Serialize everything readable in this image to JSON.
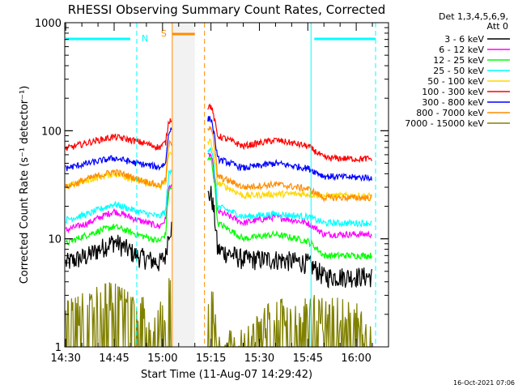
{
  "chart_data": {
    "type": "line",
    "title": "RHESSI Observing Summary Count Rates, Corrected",
    "xlabel": "Start Time (11-Aug-07 14:29:42)",
    "ylabel": "Corrected Count Rate (s⁻¹ detector⁻¹)",
    "y_scale": "log",
    "ylim": [
      1,
      1000
    ],
    "y_ticks": [
      {
        "value": 1,
        "label": "1"
      },
      {
        "value": 10,
        "label": "10"
      },
      {
        "value": 100,
        "label": "100"
      },
      {
        "value": 1000,
        "label": "1000"
      }
    ],
    "xlim": [
      "14:29:42",
      "16:10:00"
    ],
    "x_ticks": [
      "14:30",
      "14:45",
      "15:00",
      "15:15",
      "15:30",
      "15:45",
      "16:00"
    ],
    "legend_position": "top-right",
    "legend_header": [
      "Det 1,3,4,5,6,9,",
      "Att 0"
    ],
    "timestamp": "16-Oct-2021 07:06",
    "flag_markers": [
      {
        "label": "N",
        "color": "#00ffff"
      },
      {
        "label": "S",
        "color": "#ff8c00"
      }
    ],
    "series": [
      {
        "name": "3 - 6 keV",
        "color": "#000000",
        "x": [
          "14:30",
          "14:37",
          "14:45",
          "14:52",
          "14:59",
          "15:01",
          "15:02",
          "15:15",
          "15:17",
          "15:25",
          "15:35",
          "15:45",
          "15:50",
          "16:00",
          "16:05"
        ],
        "y": [
          6,
          7,
          9.5,
          7,
          6,
          7,
          12,
          26,
          8,
          6.5,
          6.5,
          6,
          4.5,
          4.5,
          4.5
        ]
      },
      {
        "name": "6 - 12 keV",
        "color": "#ff00ff",
        "x": [
          "14:30",
          "14:37",
          "14:45",
          "14:52",
          "14:59",
          "15:01",
          "15:02",
          "15:15",
          "15:17",
          "15:25",
          "15:35",
          "15:45",
          "15:50",
          "16:00",
          "16:05"
        ],
        "y": [
          12,
          14,
          18,
          15,
          13,
          15,
          30,
          60,
          18,
          14,
          16,
          14,
          11,
          11,
          11
        ]
      },
      {
        "name": "12 - 25 keV",
        "color": "#00ff00",
        "x": [
          "14:30",
          "14:37",
          "14:45",
          "14:52",
          "14:59",
          "15:01",
          "15:02",
          "15:15",
          "15:17",
          "15:25",
          "15:35",
          "15:45",
          "15:50",
          "16:00",
          "16:05"
        ],
        "y": [
          9,
          11,
          13,
          11,
          9.5,
          11,
          28,
          55,
          14,
          10,
          11,
          9.5,
          7,
          7,
          7
        ]
      },
      {
        "name": "25 - 50 keV",
        "color": "#00ffff",
        "x": [
          "14:30",
          "14:37",
          "14:45",
          "14:52",
          "14:59",
          "15:01",
          "15:02",
          "15:15",
          "15:17",
          "15:25",
          "15:35",
          "15:45",
          "15:50",
          "16:00",
          "16:05"
        ],
        "y": [
          15,
          17,
          21,
          18,
          16,
          18,
          40,
          70,
          20,
          16,
          17,
          16,
          14,
          14,
          14
        ]
      },
      {
        "name": "50 - 100 keV",
        "color": "#ffd700",
        "x": [
          "14:30",
          "14:37",
          "14:45",
          "14:52",
          "14:59",
          "15:01",
          "15:02",
          "15:15",
          "15:17",
          "15:25",
          "15:35",
          "15:45",
          "15:50",
          "16:00",
          "16:05"
        ],
        "y": [
          30,
          35,
          40,
          35,
          30,
          34,
          60,
          80,
          33,
          25,
          26,
          26,
          25,
          25,
          25
        ]
      },
      {
        "name": "100 - 300 keV",
        "color": "#ff0000",
        "x": [
          "14:30",
          "14:37",
          "14:45",
          "14:52",
          "14:59",
          "15:01",
          "15:02",
          "15:15",
          "15:17",
          "15:25",
          "15:35",
          "15:45",
          "15:50",
          "16:00",
          "16:05"
        ],
        "y": [
          68,
          78,
          88,
          80,
          70,
          78,
          125,
          170,
          90,
          72,
          82,
          72,
          56,
          55,
          55
        ]
      },
      {
        "name": "300 - 800 keV",
        "color": "#0000ff",
        "x": [
          "14:30",
          "14:37",
          "14:45",
          "14:52",
          "14:59",
          "15:01",
          "15:02",
          "15:15",
          "15:17",
          "15:25",
          "15:35",
          "15:45",
          "15:50",
          "16:00",
          "16:05"
        ],
        "y": [
          45,
          50,
          56,
          50,
          46,
          50,
          100,
          130,
          55,
          45,
          50,
          45,
          38,
          37,
          37
        ]
      },
      {
        "name": "800 - 7000 keV",
        "color": "#ff8c00",
        "x": [
          "14:30",
          "14:37",
          "14:45",
          "14:52",
          "14:59",
          "15:01",
          "15:02",
          "15:15",
          "15:17",
          "15:25",
          "15:35",
          "15:45",
          "15:50",
          "16:00",
          "16:05"
        ],
        "y": [
          30,
          36,
          42,
          36,
          31,
          35,
          75,
          110,
          38,
          30,
          32,
          29,
          24,
          24,
          24
        ]
      },
      {
        "name": "7000 - 15000 keV",
        "color": "#808000",
        "x": [
          "14:30",
          "14:37",
          "14:45",
          "14:52",
          "14:59",
          "15:01",
          "15:02",
          "15:15",
          "15:17",
          "15:25",
          "15:35",
          "15:45",
          "15:50",
          "16:00",
          "16:05"
        ],
        "y": [
          1.8,
          2.2,
          2.8,
          2.2,
          1.8,
          1.9,
          3,
          3,
          1,
          1,
          1.9,
          2.2,
          1.9,
          1.9,
          1
        ]
      }
    ]
  }
}
